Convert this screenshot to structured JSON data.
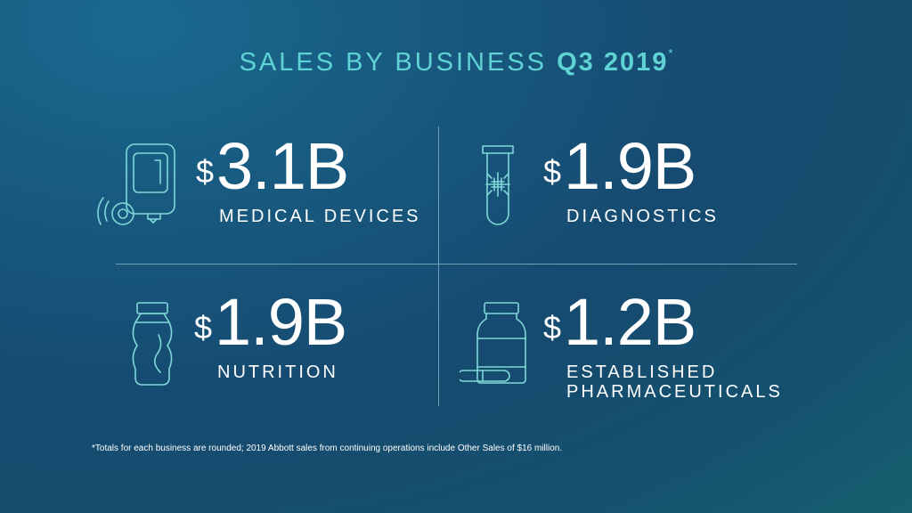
{
  "title": {
    "prefix": "SALES BY BUSINESS",
    "period": "Q3 2019",
    "mark": "*"
  },
  "businesses": [
    {
      "currency": "$",
      "amount": "3.1B",
      "label": "MEDICAL DEVICES",
      "icon": "glucose-monitor-icon"
    },
    {
      "currency": "$",
      "amount": "1.9B",
      "label": "DIAGNOSTICS",
      "icon": "test-tube-icon"
    },
    {
      "currency": "$",
      "amount": "1.9B",
      "label": "NUTRITION",
      "icon": "nutrition-bottle-icon"
    },
    {
      "currency": "$",
      "amount": "1.2B",
      "label_line1": "ESTABLISHED",
      "label_line2": "PHARMACEUTICALS",
      "icon": "pill-bottle-icon"
    }
  ],
  "footnote": "*Totals for each business are rounded; 2019 Abbott sales from continuing operations include Other Sales of $16 million.",
  "colors": {
    "accent": "#5fd3d3",
    "icon_stroke": "#7fd8d8",
    "text": "#ffffff",
    "divider": "#6fa2b8"
  }
}
